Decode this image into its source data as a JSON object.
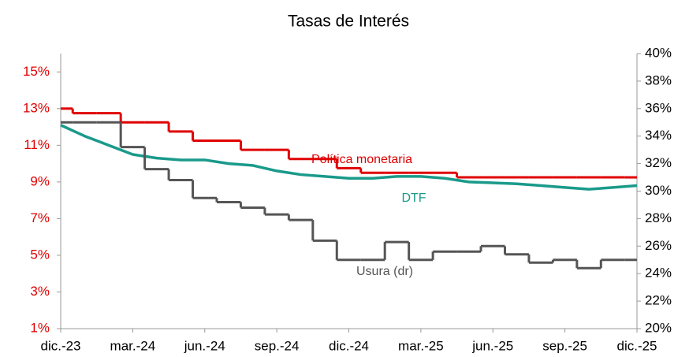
{
  "chart_data": {
    "type": "line",
    "title": "Tasas de Interés",
    "categories": [
      "dic.-23",
      null,
      null,
      "mar.-24",
      null,
      null,
      "jun.-24",
      null,
      null,
      "sep.-24",
      null,
      null,
      "dic.-24",
      null,
      null,
      "mar.-25",
      null,
      null,
      "jun.-25",
      null,
      null,
      "sep.-25",
      null,
      null,
      "dic.-25"
    ],
    "ylim": [
      1,
      16
    ],
    "yticks": [
      {
        "value": 1,
        "label": "1%"
      },
      {
        "value": 3,
        "label": "3%"
      },
      {
        "value": 5,
        "label": "5%"
      },
      {
        "value": 7,
        "label": "7%"
      },
      {
        "value": 9,
        "label": "9%"
      },
      {
        "value": 11,
        "label": "11%"
      },
      {
        "value": 13,
        "label": "13%"
      },
      {
        "value": 15,
        "label": "15%"
      }
    ],
    "y2lim": [
      20,
      40
    ],
    "y2ticks": [
      {
        "value": 20,
        "label": "20%"
      },
      {
        "value": 22,
        "label": "22%"
      },
      {
        "value": 24,
        "label": "24%"
      },
      {
        "value": 26,
        "label": "26%"
      },
      {
        "value": 28,
        "label": "28%"
      },
      {
        "value": 30,
        "label": "30%"
      },
      {
        "value": 32,
        "label": "32%"
      },
      {
        "value": 34,
        "label": "34%"
      },
      {
        "value": 36,
        "label": "36%"
      },
      {
        "value": 38,
        "label": "38%"
      },
      {
        "value": 40,
        "label": "40%"
      }
    ],
    "series": [
      {
        "name": "Política monetaria",
        "color": "#e00000",
        "step": true,
        "values": [
          13.0,
          12.75,
          12.75,
          12.25,
          12.25,
          11.75,
          11.25,
          11.25,
          10.75,
          10.75,
          10.25,
          10.25,
          9.75,
          9.5,
          9.5,
          9.5,
          9.5,
          9.25,
          9.25,
          9.25,
          9.25,
          9.25,
          9.25,
          9.25,
          9.25
        ]
      },
      {
        "name": "DTF",
        "color": "#1a9a8a",
        "step": false,
        "values": [
          12.1,
          11.5,
          11.0,
          10.5,
          10.3,
          10.2,
          10.2,
          10.0,
          9.9,
          9.6,
          9.4,
          9.3,
          9.2,
          9.2,
          9.3,
          9.3,
          9.2,
          9.0,
          8.95,
          8.9,
          8.8,
          8.7,
          8.6,
          8.7,
          8.8
        ]
      },
      {
        "name": "Usura (dr)",
        "color": "#555555",
        "step": true,
        "axis": "y2",
        "values": [
          35.0,
          35.0,
          35.0,
          33.2,
          31.6,
          30.8,
          29.5,
          29.2,
          28.8,
          28.3,
          27.9,
          26.4,
          25.0,
          25.0,
          26.3,
          25.0,
          25.6,
          25.6,
          26.0,
          25.4,
          24.8,
          25.0,
          24.4,
          25.0,
          25.0
        ]
      }
    ]
  }
}
